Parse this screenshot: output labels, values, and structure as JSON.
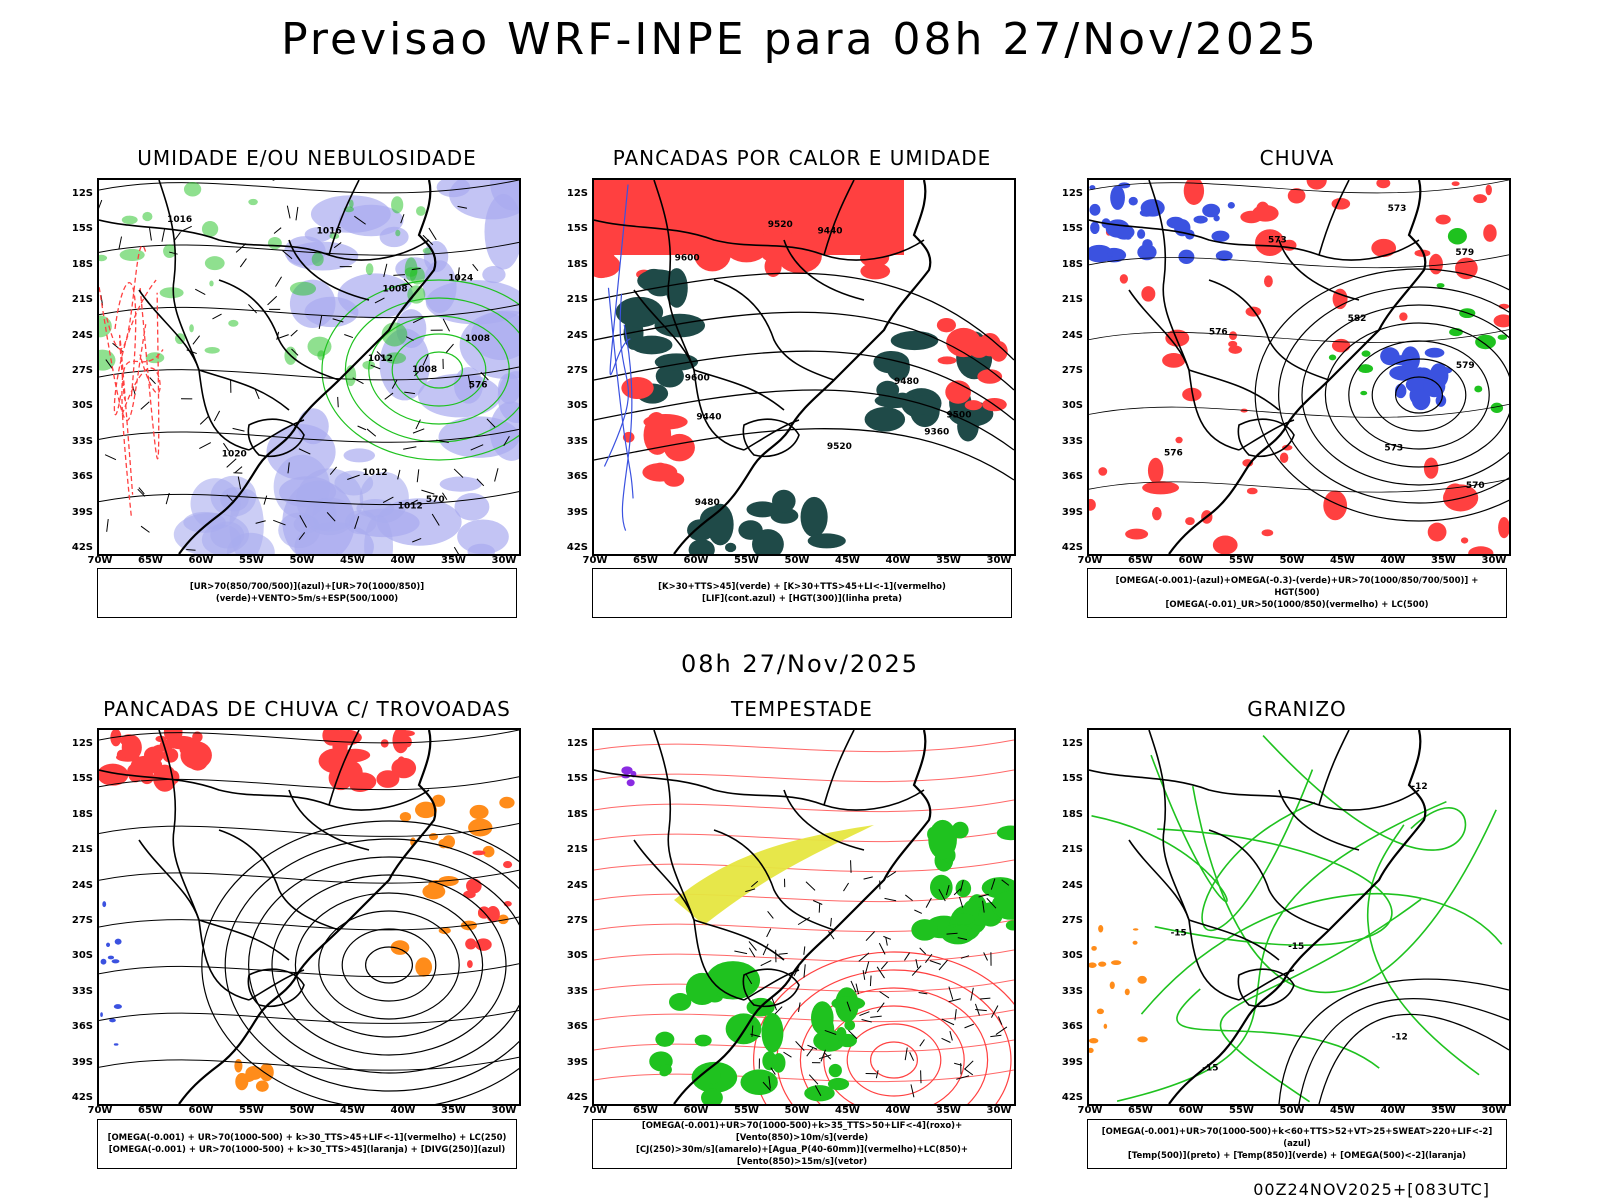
{
  "title": "Previsao WRF-INPE  para 08h 27/Nov/2025",
  "subtitle": "08h 27/Nov/2025",
  "footer": "00Z24NOV2025+[083UTC]",
  "lat_labels": [
    "12S",
    "15S",
    "18S",
    "21S",
    "24S",
    "27S",
    "30S",
    "33S",
    "36S",
    "39S",
    "42S"
  ],
  "lon_labels": [
    "70W",
    "65W",
    "60W",
    "55W",
    "50W",
    "45W",
    "40W",
    "35W",
    "30W"
  ],
  "colors": {
    "blue": "#3b52e0",
    "green": "#1fc21f",
    "red": "#ff4040",
    "orange": "#ff8c1a",
    "yellow": "#e6e640",
    "purple": "#8a2be2",
    "darkteal": "#1f4a48",
    "lavender": "#a9abef"
  },
  "panels": [
    {
      "id": "umidade",
      "title": "UMIDADE E/OU NEBULOSIDADE",
      "legend": [
        "[UR>70(850/700/500)](azul)+[UR>70(1000/850)](verde)+VENTO>5m/s+ESP(500/1000)"
      ],
      "contour_labels": [
        "1012",
        "1008",
        "1016",
        "1012",
        "1008",
        "1020",
        "1024",
        "576",
        "570",
        "1008",
        "1016",
        "1012"
      ]
    },
    {
      "id": "pancadas_calor",
      "title": "PANCADAS POR CALOR E UMIDADE",
      "legend": [
        "[K>30+TTS>45](verde)  +  [K>30+TTS>45+LI<-1](vermelho)",
        "[LIF](cont.azul)  +  [HGT(300)](linha preta)"
      ],
      "contour_labels": [
        "9600",
        "9500",
        "9600",
        "9520",
        "9520",
        "9480",
        "9440",
        "9440",
        "9480",
        "9360"
      ]
    },
    {
      "id": "chuva",
      "title": "CHUVA",
      "legend": [
        "[OMEGA(-0.001)-(azul)+OMEGA(-0.3)-(verde)+UR>70(1000/850/700/500)]  +  HGT(500)",
        "[OMEGA(-0.01)_UR>50(1000/850)(vermelho)  +  LC(500)"
      ],
      "contour_labels": [
        "582",
        "579",
        "576",
        "573",
        "570",
        "573",
        "579",
        "576",
        "573"
      ]
    },
    {
      "id": "pancadas_trovoadas",
      "title": "PANCADAS DE CHUVA C/ TROVOADAS",
      "legend": [
        "[OMEGA(-0.001)  +  UR>70(1000-500)  +  k>30_TTS>45+LIF<-1](vermelho)  +  LC(250)",
        "[OMEGA(-0.001)  +  UR>70(1000-500)  +  k>30_TTS>45](laranja)  +  [DIVG(250)](azul)"
      ],
      "contour_labels": []
    },
    {
      "id": "tempestade",
      "title": "TEMPESTADE",
      "legend": [
        "[OMEGA(-0.001)+UR>70(1000-500)+k>35_TTS>50+LIF<-4](roxo)+[Vento(850)>10m/s](verde)",
        "[CJ(250)>30m/s](amarelo)+[Agua_P(40-60mm)](vermelho)+LC(850)+[Vento(850)>15m/s](vetor)"
      ],
      "contour_labels": []
    },
    {
      "id": "granizo",
      "title": "GRANIZO",
      "legend": [
        "[OMEGA(-0.001)+UR>70(1000-500)+k<60+TTS>52+VT>25+SWEAT>220+LIF<-2](azul)",
        "[Temp(500)](preto)  +  [Temp(850)](verde)  +  [OMEGA(500)<-2](laranja)"
      ],
      "contour_labels": [
        "-12",
        "-12",
        "-15",
        "-15",
        "-15"
      ]
    }
  ]
}
